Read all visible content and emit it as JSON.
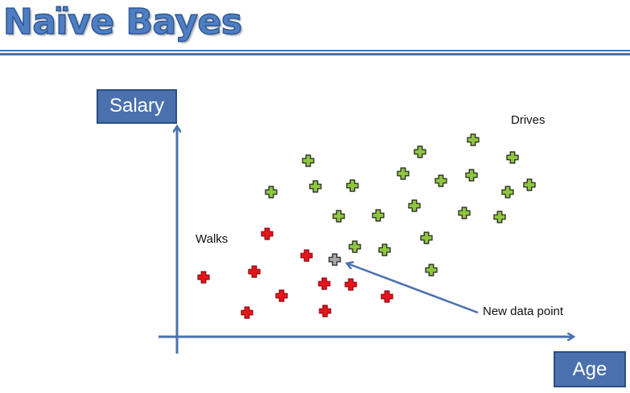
{
  "title": "Naïve Bayes",
  "axes": {
    "y_label": "Salary",
    "x_label": "Age"
  },
  "annotations": {
    "drives": "Drives",
    "walks": "Walks",
    "new_point": "New data point"
  },
  "colors": {
    "title": "#4f7ec2",
    "axis": "#4a71ae",
    "drives_class": "#8dc63f",
    "walks_class": "#e8141c",
    "new_point": "#a6a6a6",
    "marker_outline": "#1a1a1a"
  },
  "chart_data": {
    "type": "scatter",
    "series": [
      {
        "name": "Drives",
        "color": "#8dc63f",
        "points": [
          [
            383,
            200
          ],
          [
            522,
            189
          ],
          [
            588,
            174
          ],
          [
            637,
            196
          ],
          [
            337,
            239
          ],
          [
            392,
            232
          ],
          [
            438,
            231
          ],
          [
            501,
            216
          ],
          [
            548,
            225
          ],
          [
            586,
            218
          ],
          [
            631,
            239
          ],
          [
            658,
            230
          ],
          [
            421,
            269
          ],
          [
            470,
            268
          ],
          [
            515,
            256
          ],
          [
            577,
            265
          ],
          [
            621,
            270
          ],
          [
            441,
            307
          ],
          [
            478,
            311
          ],
          [
            530,
            296
          ],
          [
            536,
            336
          ]
        ]
      },
      {
        "name": "Walks",
        "color": "#e8141c",
        "points": [
          [
            332,
            291
          ],
          [
            381,
            318
          ],
          [
            253,
            345
          ],
          [
            316,
            338
          ],
          [
            403,
            353
          ],
          [
            436,
            354
          ],
          [
            350,
            368
          ],
          [
            481,
            369
          ],
          [
            307,
            389
          ],
          [
            404,
            387
          ]
        ]
      },
      {
        "name": "New data point",
        "color": "#a6a6a6",
        "points": [
          [
            416,
            323
          ]
        ]
      }
    ]
  }
}
